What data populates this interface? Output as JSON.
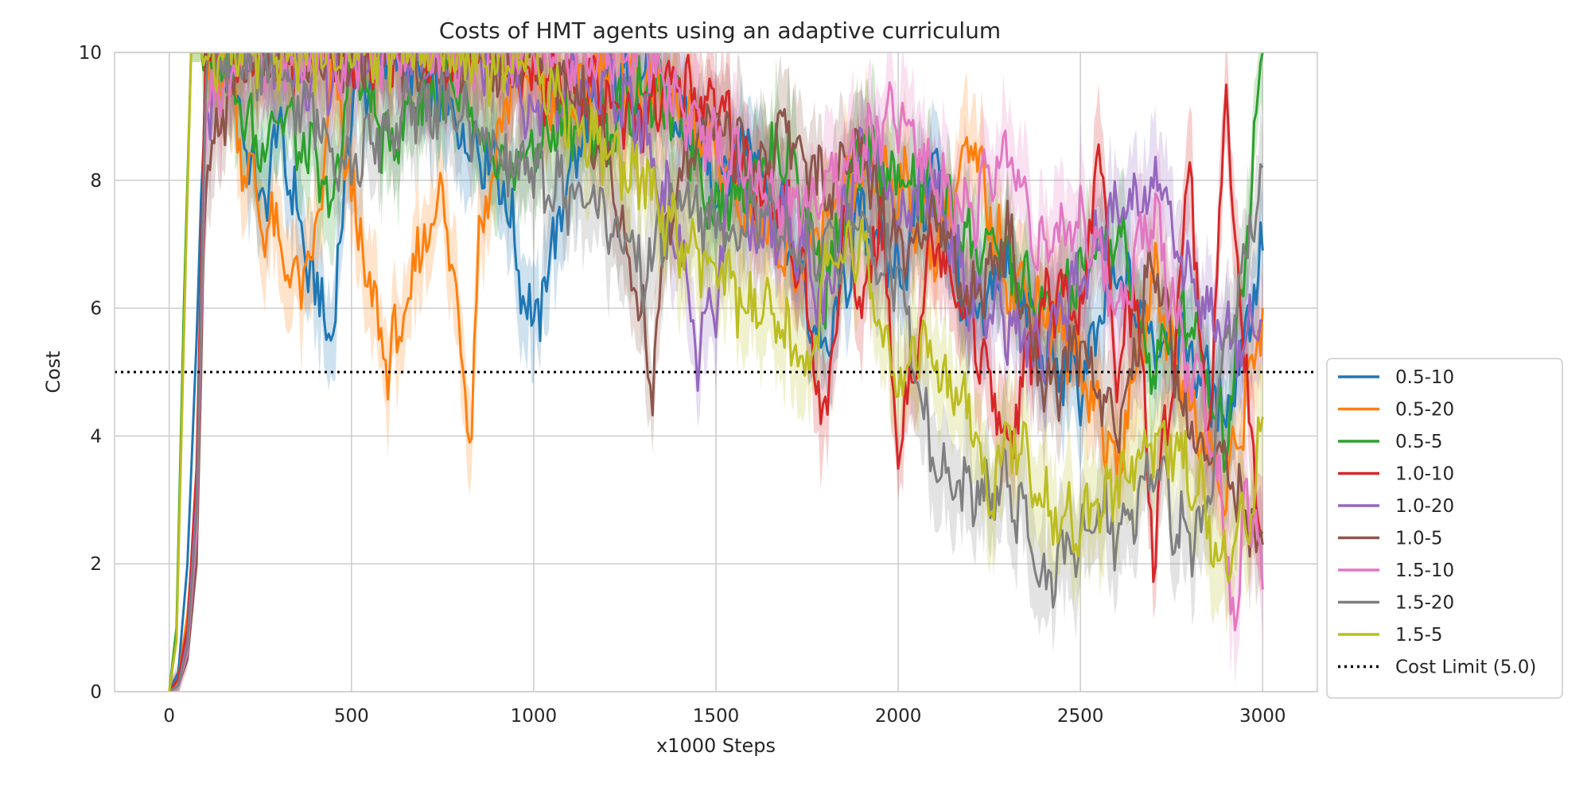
{
  "chart_data": {
    "type": "line",
    "title": "Costs of HMT agents using an adaptive curriculum",
    "xlabel": "x1000 Steps",
    "ylabel": "Cost",
    "xlim": [
      -150,
      3150
    ],
    "ylim": [
      0,
      10
    ],
    "xticks": [
      0,
      500,
      1000,
      1500,
      2000,
      2500,
      3000
    ],
    "yticks": [
      0,
      2,
      4,
      6,
      8,
      10
    ],
    "grid": true,
    "legend_position": "right",
    "shaded_band": "uncertainty band around each series",
    "reference_line": {
      "label": "Cost Limit (5.0)",
      "y": 5.0,
      "color": "#000000",
      "style": "dotted"
    },
    "series": [
      {
        "name": "0.5-10",
        "color": "#1f77b4",
        "x": [
          0,
          25,
          50,
          75,
          100,
          150,
          200,
          250,
          300,
          350,
          400,
          450,
          500,
          600,
          700,
          800,
          900,
          1000,
          1100,
          1200,
          1300,
          1400,
          1500,
          1600,
          1700,
          1800,
          1900,
          2000,
          2100,
          2200,
          2300,
          2400,
          2500,
          2600,
          2700,
          2800,
          2900,
          3000
        ],
        "y": [
          0,
          0.3,
          2.0,
          5.5,
          10,
          10,
          9.0,
          7.5,
          8.8,
          7.5,
          6.2,
          5.6,
          9.3,
          10,
          9.5,
          8.8,
          8.3,
          5.6,
          8.2,
          9.5,
          9.6,
          9.0,
          8.0,
          8.7,
          7.0,
          5.2,
          7.5,
          6.5,
          8.2,
          5.5,
          6.8,
          5.2,
          4.8,
          6.5,
          5.6,
          5.3,
          4.3,
          6.9
        ]
      },
      {
        "name": "0.5-20",
        "color": "#ff7f0e",
        "x": [
          0,
          25,
          50,
          75,
          100,
          150,
          200,
          250,
          300,
          350,
          400,
          450,
          500,
          550,
          600,
          650,
          700,
          750,
          800,
          830,
          850,
          900,
          950,
          1000,
          1100,
          1200,
          1300,
          1400,
          1500,
          1600,
          1700,
          1800,
          1900,
          2000,
          2100,
          2200,
          2300,
          2400,
          2500,
          2600,
          2700,
          2800,
          2900,
          3000
        ],
        "y": [
          0,
          0.2,
          1.2,
          3.0,
          9.5,
          10,
          8.5,
          7.5,
          7.0,
          6.3,
          6.8,
          9.8,
          7.8,
          6.2,
          5.2,
          5.8,
          7.2,
          7.8,
          5.5,
          4.2,
          7.2,
          8.5,
          10,
          9.5,
          9.0,
          10,
          9.5,
          9.0,
          8.5,
          7.5,
          6.5,
          7.2,
          8.2,
          8.0,
          7.0,
          8.5,
          6.5,
          6.0,
          5.2,
          3.5,
          6.5,
          4.5,
          3.0,
          6.0
        ]
      },
      {
        "name": "0.5-5",
        "color": "#2ca02c",
        "x": [
          0,
          20,
          40,
          60,
          100,
          150,
          200,
          250,
          300,
          350,
          400,
          450,
          500,
          600,
          700,
          800,
          900,
          1000,
          1100,
          1200,
          1300,
          1400,
          1500,
          1600,
          1700,
          1800,
          1900,
          2000,
          2100,
          2200,
          2300,
          2400,
          2500,
          2600,
          2700,
          2800,
          2900,
          3000
        ],
        "y": [
          0,
          1.0,
          6.0,
          10,
          10,
          10,
          9.0,
          8.5,
          9.2,
          8.6,
          8.2,
          7.5,
          10,
          8.5,
          9.5,
          9.2,
          8.0,
          8.5,
          9.0,
          8.8,
          9.5,
          9.0,
          7.5,
          8.2,
          8.5,
          6.3,
          8.5,
          8.0,
          7.8,
          7.0,
          6.8,
          5.8,
          6.5,
          7.2,
          5.0,
          6.0,
          3.8,
          10
        ]
      },
      {
        "name": "1.0-10",
        "color": "#d62728",
        "x": [
          0,
          25,
          50,
          75,
          100,
          150,
          200,
          300,
          400,
          500,
          600,
          700,
          800,
          900,
          1000,
          1100,
          1200,
          1300,
          1400,
          1500,
          1600,
          1700,
          1750,
          1800,
          1850,
          1900,
          1950,
          2000,
          2050,
          2100,
          2200,
          2300,
          2400,
          2500,
          2550,
          2600,
          2650,
          2700,
          2750,
          2800,
          2850,
          2900,
          2950,
          3000
        ],
        "y": [
          0,
          0.2,
          1.0,
          3.5,
          10,
          10,
          10,
          10,
          10,
          10,
          10,
          10,
          10,
          10,
          9.5,
          9.5,
          9.2,
          9.0,
          9.5,
          9.2,
          8.0,
          7.5,
          6.0,
          4.0,
          7.2,
          6.0,
          7.5,
          3.8,
          5.5,
          7.2,
          5.8,
          3.8,
          6.2,
          5.8,
          8.5,
          5.0,
          6.5,
          2.2,
          4.8,
          8.5,
          3.6,
          9.5,
          5.0,
          2.5
        ]
      },
      {
        "name": "1.0-20",
        "color": "#9467bd",
        "x": [
          0,
          25,
          50,
          75,
          100,
          150,
          200,
          300,
          400,
          500,
          600,
          700,
          800,
          900,
          1000,
          1100,
          1200,
          1300,
          1400,
          1450,
          1500,
          1550,
          1600,
          1700,
          1800,
          1900,
          2000,
          2100,
          2200,
          2300,
          2400,
          2500,
          2600,
          2700,
          2800,
          2900,
          3000
        ],
        "y": [
          0,
          0.1,
          0.8,
          3.0,
          9.0,
          10,
          10,
          10,
          9.5,
          10,
          10,
          10,
          10,
          10,
          9.0,
          9.5,
          9.5,
          8.8,
          7.0,
          5.3,
          6.0,
          8.5,
          7.0,
          7.5,
          5.8,
          8.8,
          7.5,
          8.0,
          6.2,
          5.8,
          5.2,
          6.5,
          7.5,
          8.0,
          6.5,
          5.5,
          5.8
        ]
      },
      {
        "name": "1.0-5",
        "color": "#8c564b",
        "x": [
          0,
          25,
          50,
          75,
          100,
          200,
          300,
          400,
          500,
          600,
          700,
          800,
          900,
          1000,
          1100,
          1200,
          1250,
          1300,
          1320,
          1350,
          1400,
          1500,
          1600,
          1700,
          1800,
          1900,
          2000,
          2100,
          2200,
          2300,
          2400,
          2500,
          2600,
          2700,
          2800,
          2900,
          3000
        ],
        "y": [
          0,
          0.1,
          0.5,
          2.0,
          8.0,
          10,
          10,
          10,
          10,
          10,
          10,
          10,
          9.8,
          10,
          9.5,
          8.5,
          7.0,
          6.0,
          4.5,
          6.5,
          8.0,
          9.0,
          8.2,
          8.8,
          7.8,
          8.5,
          7.0,
          7.5,
          6.0,
          7.2,
          4.5,
          5.5,
          4.0,
          6.8,
          4.0,
          3.5,
          2.3
        ]
      },
      {
        "name": "1.5-10",
        "color": "#e377c2",
        "x": [
          0,
          25,
          50,
          75,
          100,
          200,
          300,
          400,
          500,
          600,
          700,
          800,
          900,
          1000,
          1100,
          1200,
          1300,
          1400,
          1500,
          1600,
          1700,
          1800,
          1900,
          2000,
          2100,
          2200,
          2300,
          2400,
          2500,
          2600,
          2700,
          2800,
          2850,
          2900,
          2930,
          2950,
          3000
        ],
        "y": [
          0,
          0.1,
          0.6,
          2.5,
          9.0,
          10,
          10,
          10,
          10,
          10,
          10,
          10,
          10,
          10,
          10,
          10,
          10,
          9.2,
          8.5,
          8.0,
          7.5,
          7.8,
          8.5,
          9.0,
          8.0,
          7.5,
          8.5,
          6.8,
          7.5,
          6.0,
          7.5,
          5.0,
          4.5,
          2.5,
          0.8,
          3.5,
          1.6
        ]
      },
      {
        "name": "1.5-20",
        "color": "#7f7f7f",
        "x": [
          0,
          25,
          50,
          75,
          100,
          200,
          300,
          400,
          500,
          600,
          700,
          800,
          900,
          1000,
          1100,
          1200,
          1300,
          1400,
          1500,
          1600,
          1700,
          1800,
          1900,
          2000,
          2100,
          2150,
          2200,
          2300,
          2350,
          2400,
          2450,
          2500,
          2550,
          2600,
          2700,
          2800,
          2850,
          2900,
          3000
        ],
        "y": [
          0,
          0.1,
          0.7,
          2.8,
          9.5,
          10,
          9.5,
          9.0,
          8.2,
          8.8,
          9.2,
          9.0,
          8.5,
          8.0,
          7.8,
          7.5,
          6.5,
          7.8,
          7.2,
          7.5,
          7.0,
          6.8,
          7.2,
          6.5,
          3.5,
          3.2,
          3.0,
          3.2,
          2.5,
          1.8,
          2.0,
          2.2,
          3.0,
          2.5,
          3.5,
          2.2,
          3.0,
          5.5,
          8.2
        ]
      },
      {
        "name": "1.5-5",
        "color": "#bcbd22",
        "x": [
          0,
          20,
          40,
          60,
          100,
          200,
          300,
          400,
          500,
          600,
          700,
          800,
          900,
          1000,
          1100,
          1200,
          1300,
          1400,
          1500,
          1600,
          1700,
          1750,
          1800,
          1900,
          2000,
          2050,
          2100,
          2200,
          2250,
          2300,
          2350,
          2400,
          2450,
          2500,
          2600,
          2700,
          2800,
          2900,
          2950,
          3000
        ],
        "y": [
          0,
          0.8,
          5.5,
          10,
          10,
          10,
          10,
          10,
          10,
          10,
          10,
          10,
          9.8,
          10,
          9.0,
          8.5,
          8.0,
          7.0,
          6.5,
          6.0,
          5.5,
          5.0,
          6.5,
          7.0,
          4.5,
          5.5,
          5.0,
          4.2,
          3.0,
          4.2,
          3.5,
          2.8,
          3.0,
          2.5,
          3.2,
          4.0,
          3.5,
          2.0,
          2.5,
          4.3
        ]
      }
    ]
  }
}
